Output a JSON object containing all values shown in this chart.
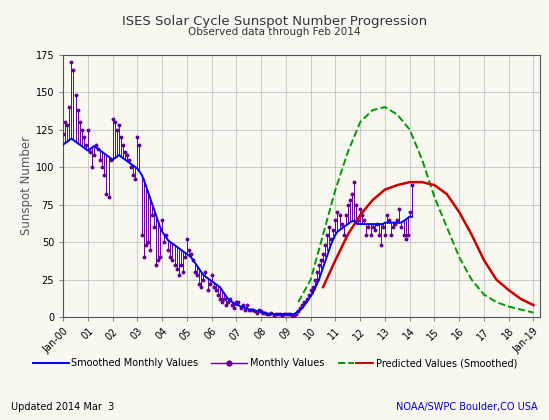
{
  "title": "ISES Solar Cycle Sunspot Number Progression",
  "subtitle": "Observed data through Feb 2014",
  "ylabel": "Sunspot Number",
  "footer_left": "Updated 2014 Mar  3",
  "footer_right": "NOAA/SWPC Boulder,CO USA",
  "ylim": [
    0,
    175
  ],
  "yticks": [
    0,
    25,
    50,
    75,
    100,
    125,
    150,
    175
  ],
  "x_start": 2000.0,
  "x_end": 2019.25,
  "x_ticks_labels": [
    "Jan-00",
    "01",
    "02",
    "03",
    "04",
    "05",
    "06",
    "07",
    "08",
    "09",
    "10",
    "11",
    "12",
    "13",
    "14",
    "15",
    "16",
    "17",
    "18",
    "Jan-19"
  ],
  "x_ticks_pos": [
    2000.0,
    2001.0,
    2002.0,
    2003.0,
    2004.0,
    2005.0,
    2006.0,
    2007.0,
    2008.0,
    2009.0,
    2010.0,
    2011.0,
    2012.0,
    2013.0,
    2014.0,
    2015.0,
    2016.0,
    2017.0,
    2018.0,
    2019.0
  ],
  "smoothed_color": "#0000ff",
  "monthly_color": "#660099",
  "predicted_green_color": "#009900",
  "predicted_red_color": "#cc0000",
  "background_color": "#f8f8f0",
  "grid_color": "#aaaaaa",
  "title_color": "#333333",
  "footer_right_color": "#0000cc",
  "footer_left_color": "#000000",
  "smoothed_x": [
    2000.0,
    2000.083,
    2000.167,
    2000.25,
    2000.333,
    2000.417,
    2000.5,
    2000.583,
    2000.667,
    2000.75,
    2000.833,
    2000.917,
    2001.0,
    2001.083,
    2001.167,
    2001.25,
    2001.333,
    2001.417,
    2001.5,
    2001.583,
    2001.667,
    2001.75,
    2001.833,
    2001.917,
    2002.0,
    2002.083,
    2002.167,
    2002.25,
    2002.333,
    2002.417,
    2002.5,
    2002.583,
    2002.667,
    2002.75,
    2002.833,
    2002.917,
    2003.0,
    2003.083,
    2003.167,
    2003.25,
    2003.333,
    2003.417,
    2003.5,
    2003.583,
    2003.667,
    2003.75,
    2003.833,
    2003.917,
    2004.0,
    2004.083,
    2004.167,
    2004.25,
    2004.333,
    2004.417,
    2004.5,
    2004.583,
    2004.667,
    2004.75,
    2004.833,
    2004.917,
    2005.0,
    2005.083,
    2005.167,
    2005.25,
    2005.333,
    2005.417,
    2005.5,
    2005.583,
    2005.667,
    2005.75,
    2005.833,
    2005.917,
    2006.0,
    2006.083,
    2006.167,
    2006.25,
    2006.333,
    2006.417,
    2006.5,
    2006.583,
    2006.667,
    2006.75,
    2006.833,
    2006.917,
    2007.0,
    2007.083,
    2007.167,
    2007.25,
    2007.333,
    2007.417,
    2007.5,
    2007.583,
    2007.667,
    2007.75,
    2007.833,
    2007.917,
    2008.0,
    2008.083,
    2008.167,
    2008.25,
    2008.333,
    2008.417,
    2008.5,
    2008.583,
    2008.667,
    2008.75,
    2008.833,
    2008.917,
    2009.0,
    2009.083,
    2009.167,
    2009.25,
    2009.333,
    2009.417,
    2009.5,
    2009.583,
    2009.667,
    2009.75,
    2009.833,
    2009.917,
    2010.0,
    2010.083,
    2010.167,
    2010.25,
    2010.333,
    2010.417,
    2010.5,
    2010.583,
    2010.667,
    2010.75,
    2010.833,
    2010.917,
    2011.0,
    2011.083,
    2011.167,
    2011.25,
    2011.333,
    2011.417,
    2011.5,
    2011.583,
    2011.667,
    2011.75,
    2011.833,
    2011.917,
    2012.0,
    2012.083,
    2012.167,
    2012.25,
    2012.333,
    2012.417,
    2012.5,
    2012.583,
    2012.667,
    2012.75,
    2012.833,
    2012.917,
    2013.0,
    2013.083,
    2013.167,
    2013.25,
    2013.333,
    2013.417,
    2013.5,
    2013.583,
    2013.667,
    2013.75,
    2013.833,
    2013.917,
    2014.0,
    2014.083
  ],
  "smoothed_y": [
    115,
    116,
    117,
    118,
    119,
    118,
    117,
    116,
    115,
    114,
    113,
    112,
    111,
    112,
    113,
    114,
    113,
    112,
    111,
    110,
    109,
    108,
    107,
    106,
    105,
    106,
    107,
    108,
    107,
    106,
    105,
    104,
    103,
    102,
    101,
    100,
    99,
    97,
    95,
    92,
    88,
    84,
    80,
    76,
    72,
    68,
    64,
    60,
    57,
    55,
    53,
    51,
    50,
    49,
    48,
    47,
    46,
    45,
    44,
    43,
    42,
    41,
    40,
    38,
    36,
    34,
    32,
    30,
    28,
    27,
    26,
    25,
    24,
    23,
    22,
    21,
    20,
    18,
    16,
    14,
    12,
    11,
    10,
    9,
    8,
    8,
    7,
    7,
    6,
    6,
    5,
    5,
    5,
    4,
    4,
    4,
    3,
    3,
    3,
    2,
    2,
    2,
    2,
    2,
    2,
    2,
    2,
    2,
    2,
    2,
    2,
    2,
    2,
    3,
    4,
    5,
    6,
    8,
    10,
    12,
    14,
    16,
    19,
    22,
    25,
    29,
    33,
    37,
    41,
    45,
    49,
    52,
    55,
    57,
    58,
    59,
    60,
    61,
    62,
    63,
    64,
    64,
    63,
    62,
    62,
    62,
    62,
    62,
    62,
    62,
    62,
    62,
    62,
    62,
    62,
    62,
    63,
    63,
    63,
    63,
    63,
    63,
    63,
    63,
    63,
    64,
    65,
    66,
    67,
    67
  ],
  "monthly_x": [
    2000.0,
    2000.083,
    2000.167,
    2000.25,
    2000.333,
    2000.417,
    2000.5,
    2000.583,
    2000.667,
    2000.75,
    2000.833,
    2000.917,
    2001.0,
    2001.083,
    2001.167,
    2001.25,
    2001.333,
    2001.417,
    2001.5,
    2001.583,
    2001.667,
    2001.75,
    2001.833,
    2001.917,
    2002.0,
    2002.083,
    2002.167,
    2002.25,
    2002.333,
    2002.417,
    2002.5,
    2002.583,
    2002.667,
    2002.75,
    2002.833,
    2002.917,
    2003.0,
    2003.083,
    2003.167,
    2003.25,
    2003.333,
    2003.417,
    2003.5,
    2003.583,
    2003.667,
    2003.75,
    2003.833,
    2003.917,
    2004.0,
    2004.083,
    2004.167,
    2004.25,
    2004.333,
    2004.417,
    2004.5,
    2004.583,
    2004.667,
    2004.75,
    2004.833,
    2004.917,
    2005.0,
    2005.083,
    2005.167,
    2005.25,
    2005.333,
    2005.417,
    2005.5,
    2005.583,
    2005.667,
    2005.75,
    2005.833,
    2005.917,
    2006.0,
    2006.083,
    2006.167,
    2006.25,
    2006.333,
    2006.417,
    2006.5,
    2006.583,
    2006.667,
    2006.75,
    2006.833,
    2006.917,
    2007.0,
    2007.083,
    2007.167,
    2007.25,
    2007.333,
    2007.417,
    2007.5,
    2007.583,
    2007.667,
    2007.75,
    2007.833,
    2007.917,
    2008.0,
    2008.083,
    2008.167,
    2008.25,
    2008.333,
    2008.417,
    2008.5,
    2008.583,
    2008.667,
    2008.75,
    2008.833,
    2008.917,
    2009.0,
    2009.083,
    2009.167,
    2009.25,
    2009.333,
    2009.417,
    2009.5,
    2009.583,
    2009.667,
    2009.75,
    2009.833,
    2009.917,
    2010.0,
    2010.083,
    2010.167,
    2010.25,
    2010.333,
    2010.417,
    2010.5,
    2010.583,
    2010.667,
    2010.75,
    2010.833,
    2010.917,
    2011.0,
    2011.083,
    2011.167,
    2011.25,
    2011.333,
    2011.417,
    2011.5,
    2011.583,
    2011.667,
    2011.75,
    2011.833,
    2011.917,
    2012.0,
    2012.083,
    2012.167,
    2012.25,
    2012.333,
    2012.417,
    2012.5,
    2012.583,
    2012.667,
    2012.75,
    2012.833,
    2012.917,
    2013.0,
    2013.083,
    2013.167,
    2013.25,
    2013.333,
    2013.417,
    2013.5,
    2013.583,
    2013.667,
    2013.75,
    2013.833,
    2013.917,
    2014.0,
    2014.083
  ],
  "monthly_y": [
    122,
    130,
    128,
    140,
    170,
    165,
    148,
    138,
    130,
    125,
    120,
    115,
    125,
    110,
    100,
    108,
    115,
    112,
    105,
    100,
    95,
    82,
    80,
    105,
    132,
    130,
    125,
    128,
    120,
    115,
    110,
    108,
    105,
    100,
    95,
    92,
    120,
    115,
    55,
    40,
    48,
    50,
    45,
    68,
    60,
    35,
    38,
    40,
    65,
    50,
    55,
    45,
    40,
    38,
    35,
    32,
    28,
    35,
    30,
    40,
    52,
    45,
    42,
    38,
    30,
    28,
    22,
    20,
    25,
    30,
    18,
    22,
    28,
    20,
    18,
    15,
    12,
    10,
    12,
    8,
    10,
    12,
    8,
    6,
    10,
    10,
    6,
    8,
    5,
    8,
    5,
    5,
    5,
    4,
    3,
    5,
    4,
    3,
    3,
    2,
    2,
    3,
    1,
    2,
    2,
    2,
    1,
    2,
    2,
    2,
    2,
    1,
    1,
    2,
    4,
    6,
    8,
    10,
    12,
    15,
    18,
    20,
    25,
    30,
    35,
    38,
    42,
    48,
    55,
    60,
    52,
    58,
    65,
    70,
    68,
    62,
    55,
    68,
    75,
    78,
    82,
    90,
    75,
    65,
    72,
    68,
    65,
    55,
    60,
    55,
    60,
    58,
    62,
    55,
    48,
    60,
    55,
    68,
    65,
    55,
    60,
    62,
    65,
    72,
    60,
    55,
    52,
    55,
    70,
    88
  ],
  "predicted_green_x": [
    2009.5,
    2010.0,
    2010.5,
    2011.0,
    2011.5,
    2012.0,
    2012.5,
    2013.0,
    2013.5,
    2014.0,
    2014.5,
    2015.0,
    2015.5,
    2016.0,
    2016.5,
    2017.0,
    2017.5,
    2018.0,
    2018.5,
    2019.0
  ],
  "predicted_green_y": [
    10,
    25,
    55,
    85,
    110,
    130,
    138,
    140,
    135,
    125,
    105,
    80,
    60,
    40,
    25,
    15,
    10,
    7,
    5,
    3
  ],
  "predicted_red_x": [
    2010.5,
    2011.0,
    2011.5,
    2012.0,
    2012.5,
    2013.0,
    2013.5,
    2014.0,
    2014.5,
    2015.0,
    2015.5,
    2016.0,
    2016.5,
    2017.0,
    2017.5,
    2018.0,
    2018.5,
    2019.0
  ],
  "predicted_red_y": [
    20,
    38,
    55,
    68,
    78,
    85,
    88,
    90,
    90,
    88,
    82,
    70,
    55,
    38,
    25,
    18,
    12,
    8
  ]
}
